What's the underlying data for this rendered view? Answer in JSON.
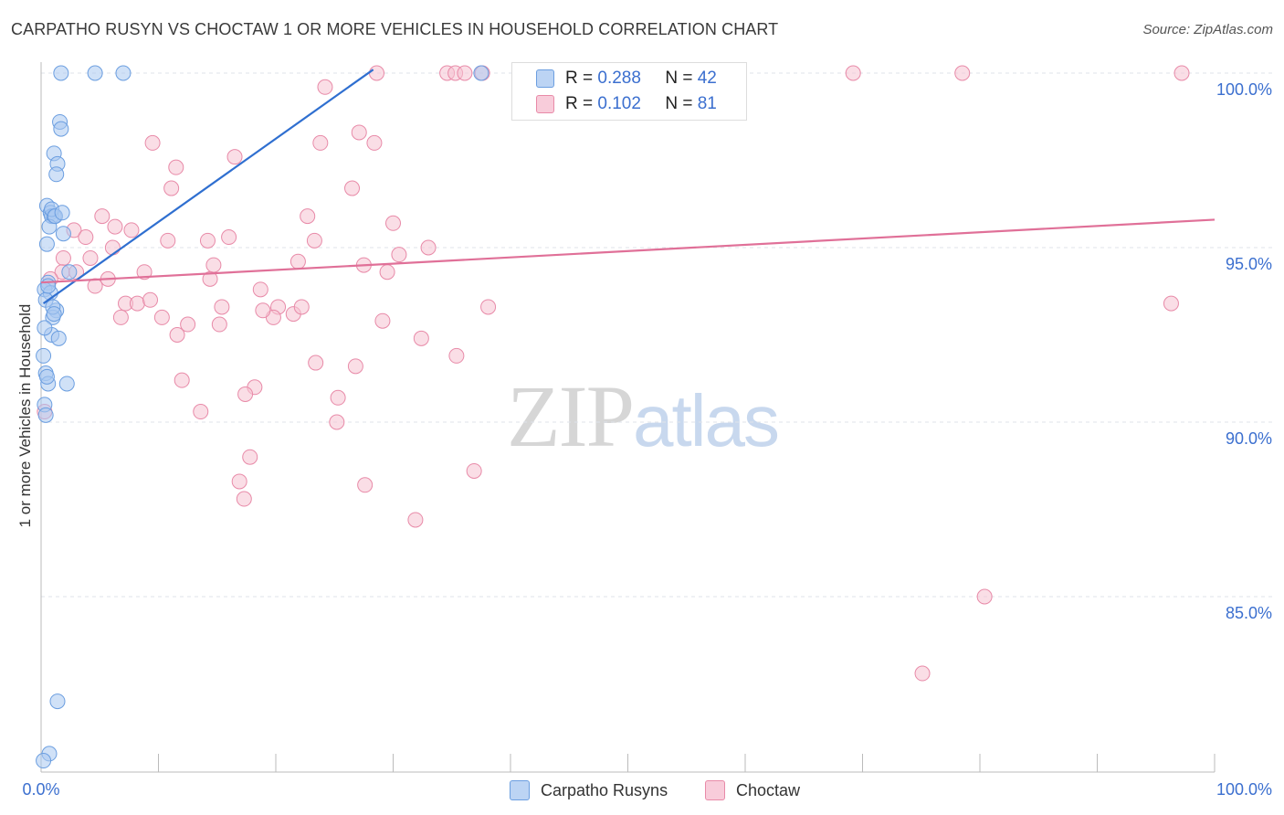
{
  "title": "CARPATHO RUSYN VS CHOCTAW 1 OR MORE VEHICLES IN HOUSEHOLD CORRELATION CHART",
  "source": "Source: ZipAtlas.com",
  "watermark": {
    "zip": "ZIP",
    "atlas": "atlas"
  },
  "legend": {
    "rows": [
      {
        "r_label": "R =",
        "r_value": "0.288",
        "n_label": "N =",
        "n_value": "42",
        "color": "#a9c8f0"
      },
      {
        "r_label": "R =",
        "r_value": "0.102",
        "n_label": "N =",
        "n_value": "81",
        "color": "#f5b8cb"
      }
    ]
  },
  "bottom_legend": [
    "Carpatho Rusyns",
    "Choctaw"
  ],
  "colors": {
    "blue_fill": "#a9c8f0",
    "blue_stroke": "#6b9ee0",
    "blue_line": "#2f6fd0",
    "pink_fill": "#f5c2d2",
    "pink_stroke": "#e88aa8",
    "pink_line": "#e07098",
    "tick_label": "#3b6fcf",
    "grid": "#dfe3ea"
  },
  "chart_data": {
    "type": "scatter",
    "title": "CARPATHO RUSYN VS CHOCTAW 1 OR MORE VEHICLES IN HOUSEHOLD CORRELATION CHART",
    "xlabel": "",
    "ylabel": "1 or more Vehicles in Household",
    "xlim": [
      0,
      100
    ],
    "ylim": [
      80.0,
      100.5
    ],
    "x_tick_labels": [
      "0.0%",
      "100.0%"
    ],
    "y_ticks": [
      85,
      90,
      95,
      100
    ],
    "y_tick_labels": [
      "85.0%",
      "90.0%",
      "95.0%",
      "100.0%"
    ],
    "grid": true,
    "legend_position": "top-center",
    "series": [
      {
        "name": "Carpatho Rusyns",
        "trend": {
          "x": [
            0.2,
            28.3
          ],
          "y": [
            93.4,
            100.1
          ]
        },
        "points": [
          [
            1.7,
            100.0
          ],
          [
            4.6,
            100.0
          ],
          [
            7.0,
            100.0
          ],
          [
            37.5,
            100.0
          ],
          [
            1.6,
            98.6
          ],
          [
            1.7,
            98.4
          ],
          [
            1.1,
            97.7
          ],
          [
            1.4,
            97.4
          ],
          [
            1.3,
            97.1
          ],
          [
            0.5,
            96.2
          ],
          [
            0.8,
            96.0
          ],
          [
            0.9,
            95.9
          ],
          [
            1.1,
            95.9
          ],
          [
            0.7,
            95.6
          ],
          [
            1.9,
            95.4
          ],
          [
            0.5,
            95.1
          ],
          [
            2.4,
            94.3
          ],
          [
            0.6,
            94.0
          ],
          [
            0.3,
            93.8
          ],
          [
            0.8,
            93.7
          ],
          [
            0.4,
            93.5
          ],
          [
            1.3,
            93.2
          ],
          [
            1.0,
            93.0
          ],
          [
            0.9,
            92.5
          ],
          [
            1.5,
            92.4
          ],
          [
            0.2,
            91.9
          ],
          [
            0.4,
            91.4
          ],
          [
            0.6,
            91.1
          ],
          [
            2.2,
            91.1
          ],
          [
            0.3,
            90.5
          ],
          [
            0.4,
            90.2
          ],
          [
            1.4,
            82.0
          ],
          [
            0.7,
            80.5
          ],
          [
            0.2,
            80.3
          ],
          [
            0.9,
            96.1
          ],
          [
            1.2,
            95.9
          ],
          [
            0.6,
            93.9
          ],
          [
            1.0,
            93.3
          ],
          [
            0.5,
            91.3
          ],
          [
            1.8,
            96.0
          ],
          [
            0.3,
            92.7
          ],
          [
            1.1,
            93.1
          ]
        ]
      },
      {
        "name": "Choctaw",
        "trend": {
          "x": [
            0,
            100
          ],
          "y": [
            94.0,
            95.8
          ]
        },
        "points": [
          [
            28.6,
            100.0
          ],
          [
            34.6,
            100.0
          ],
          [
            35.3,
            100.0
          ],
          [
            36.1,
            100.0
          ],
          [
            37.6,
            100.0
          ],
          [
            69.2,
            100.0
          ],
          [
            78.5,
            100.0
          ],
          [
            97.2,
            100.0
          ],
          [
            24.2,
            99.6
          ],
          [
            27.1,
            98.3
          ],
          [
            9.5,
            98.0
          ],
          [
            23.8,
            98.0
          ],
          [
            28.4,
            98.0
          ],
          [
            16.5,
            97.6
          ],
          [
            11.5,
            97.3
          ],
          [
            26.5,
            96.7
          ],
          [
            11.1,
            96.7
          ],
          [
            22.7,
            95.9
          ],
          [
            5.2,
            95.9
          ],
          [
            6.3,
            95.6
          ],
          [
            7.7,
            95.5
          ],
          [
            30.0,
            95.7
          ],
          [
            2.8,
            95.5
          ],
          [
            3.8,
            95.3
          ],
          [
            10.8,
            95.2
          ],
          [
            14.2,
            95.2
          ],
          [
            16.0,
            95.3
          ],
          [
            23.3,
            95.2
          ],
          [
            1.9,
            94.7
          ],
          [
            4.2,
            94.7
          ],
          [
            30.5,
            94.8
          ],
          [
            14.7,
            94.5
          ],
          [
            21.9,
            94.6
          ],
          [
            27.5,
            94.5
          ],
          [
            8.8,
            94.3
          ],
          [
            1.8,
            94.3
          ],
          [
            0.8,
            94.1
          ],
          [
            5.7,
            94.1
          ],
          [
            14.4,
            94.1
          ],
          [
            29.5,
            94.3
          ],
          [
            4.6,
            93.9
          ],
          [
            18.7,
            93.8
          ],
          [
            7.2,
            93.4
          ],
          [
            8.2,
            93.4
          ],
          [
            9.3,
            93.5
          ],
          [
            15.4,
            93.3
          ],
          [
            20.2,
            93.3
          ],
          [
            38.1,
            93.3
          ],
          [
            96.3,
            93.4
          ],
          [
            6.8,
            93.0
          ],
          [
            10.3,
            93.0
          ],
          [
            19.8,
            93.0
          ],
          [
            21.5,
            93.1
          ],
          [
            12.5,
            92.8
          ],
          [
            15.2,
            92.8
          ],
          [
            11.6,
            92.5
          ],
          [
            32.4,
            92.4
          ],
          [
            35.4,
            91.9
          ],
          [
            23.4,
            91.7
          ],
          [
            26.8,
            91.6
          ],
          [
            12.0,
            91.2
          ],
          [
            18.2,
            91.0
          ],
          [
            17.4,
            90.8
          ],
          [
            25.3,
            90.7
          ],
          [
            13.6,
            90.3
          ],
          [
            25.2,
            90.0
          ],
          [
            17.8,
            89.0
          ],
          [
            36.9,
            88.6
          ],
          [
            16.9,
            88.3
          ],
          [
            27.6,
            88.2
          ],
          [
            17.3,
            87.8
          ],
          [
            31.9,
            87.2
          ],
          [
            80.4,
            85.0
          ],
          [
            75.1,
            82.8
          ],
          [
            0.3,
            90.3
          ],
          [
            3.0,
            94.3
          ],
          [
            22.2,
            93.3
          ],
          [
            6.1,
            95.0
          ],
          [
            33.0,
            95.0
          ],
          [
            18.9,
            93.2
          ],
          [
            29.1,
            92.9
          ]
        ]
      }
    ]
  }
}
